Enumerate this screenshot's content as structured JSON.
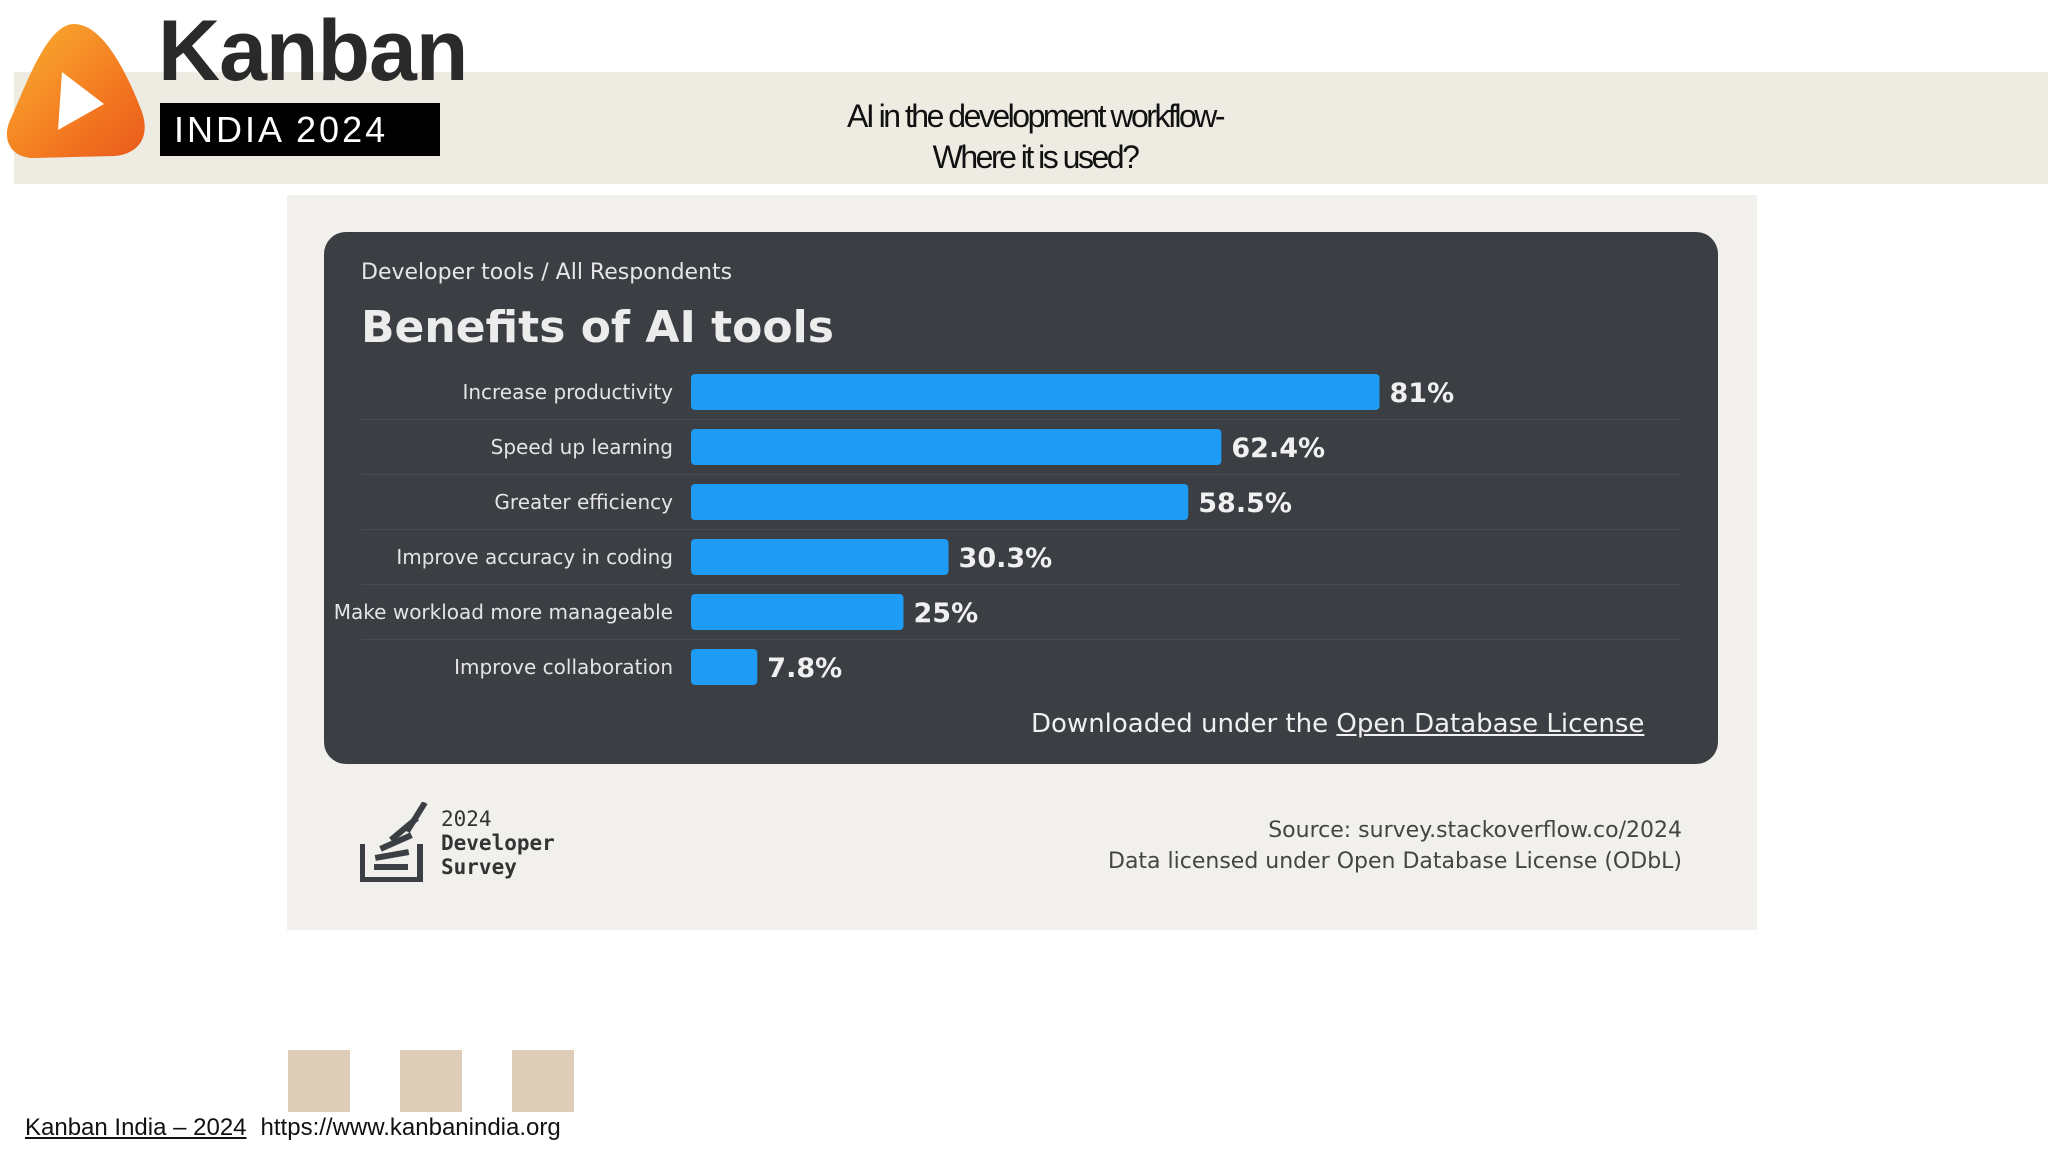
{
  "header": {
    "brand_word": "Kanban",
    "brand_sub": "INDIA 2024",
    "title_line1": "AI in the development workflow-",
    "title_line2": "Where it is used?"
  },
  "panel": {
    "breadcrumb": "Developer tools / All Respondents",
    "license_prefix": "Downloaded under the ",
    "license_link": "Open Database License"
  },
  "chart_data": {
    "type": "bar",
    "orientation": "horizontal",
    "title": "Benefits of AI tools",
    "categories": [
      "Increase productivity",
      "Speed up learning",
      "Greater efficiency",
      "Improve accuracy in coding",
      "Make workload more manageable",
      "Improve collaboration"
    ],
    "values": [
      81,
      62.4,
      58.5,
      30.3,
      25,
      7.8
    ],
    "value_labels": [
      "81%",
      "62.4%",
      "58.5%",
      "30.3%",
      "25%",
      "7.8%"
    ],
    "xlim": [
      0,
      100
    ],
    "bar_color": "#1e9bf5"
  },
  "survey": {
    "year": "2024",
    "line1": "Developer",
    "line2": "Survey",
    "source": "Source: survey.stackoverflow.co/2024",
    "license": "Data licensed under Open Database License (ODbL)"
  },
  "footer": {
    "left": "Kanban India – 2024",
    "url": "https://www.kanbanindia.org"
  },
  "colors": {
    "accent_orange": "#f47a20",
    "swatch": "#dcccb8",
    "panel_bg": "#3b3e42"
  }
}
